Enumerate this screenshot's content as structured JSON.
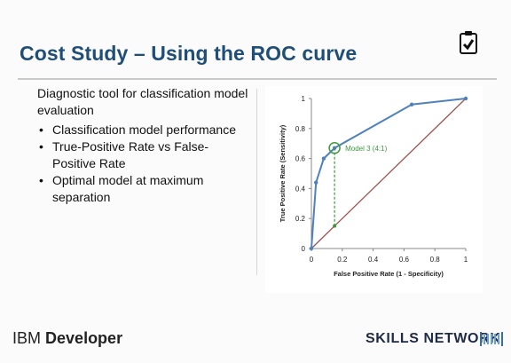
{
  "slide": {
    "title": "Cost Study – Using the ROC curve",
    "intro": "Diagnostic tool for classification model evaluation",
    "bullets": [
      "Classification model performance",
      "True-Positive Rate vs False-Positive Rate",
      "Optimal model at maximum separation"
    ]
  },
  "footer": {
    "brand_prefix": "IBM",
    "brand_name": "Developer",
    "skills_network": "SKILLS NETWORK"
  },
  "colors": {
    "title": "#1f4e79",
    "roc_line": "#4f81bd",
    "diagonal": "#a0524e",
    "highlight": "#3c9a3c"
  },
  "chart_data": {
    "type": "line",
    "xlabel": "False Positive Rate (1 - Specificity)",
    "ylabel": "True Positive Rate (Sensitivity)",
    "xlim": [
      0,
      1
    ],
    "ylim": [
      0,
      1
    ],
    "x_ticks": [
      "0",
      "0.2",
      "0.4",
      "0.6",
      "0.8",
      "1"
    ],
    "y_ticks": [
      "0",
      "0.2",
      "0.4",
      "0.6",
      "0.8",
      "1"
    ],
    "grid": false,
    "series": [
      {
        "x": [
          0,
          0.03,
          0.08,
          0.15,
          0.65,
          1.0
        ],
        "y": [
          0,
          0.44,
          0.6,
          0.67,
          0.96,
          1.0
        ]
      },
      {
        "x": [
          0,
          1
        ],
        "y": [
          0,
          1
        ]
      }
    ],
    "annotation": {
      "label": "Model 3 (4:1)",
      "x": 0.15,
      "y": 0.67,
      "baseline_y": 0.15
    }
  }
}
